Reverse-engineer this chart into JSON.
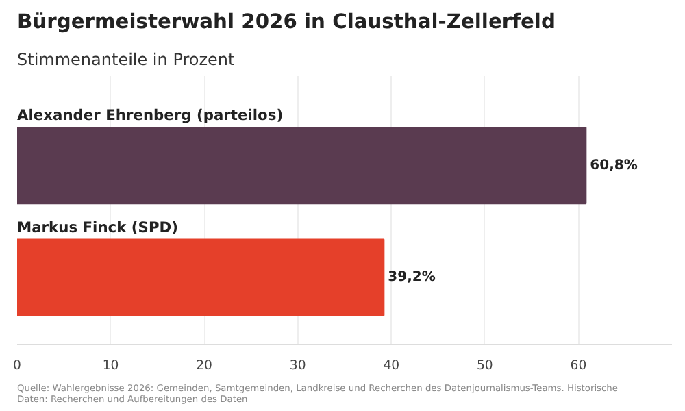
{
  "chart_data": {
    "type": "bar",
    "orientation": "horizontal",
    "title": "Bürgermeisterwahl 2026 in Clausthal-Zellerfeld",
    "subtitle": "Stimmenanteile in Prozent",
    "categories": [
      "Alexander Ehrenberg (parteilos)",
      "Markus Finck (SPD)"
    ],
    "values": [
      60.8,
      39.2
    ],
    "colors": [
      "#5a3b50",
      "#e5402a"
    ],
    "value_labels": [
      "60,8%",
      "39,2%"
    ],
    "xlim": [
      0,
      70
    ],
    "xticks": [
      0,
      10,
      20,
      30,
      40,
      50,
      60
    ],
    "grid": "x",
    "annotations": [
      "Quelle: Wahlergebnisse 2026: Gemeinden, Samtgemeinden, Landkreise und Recherchen des Datenjournalismus-Teams. Historische Daten: Recherchen und Aufbereitungen des Daten"
    ]
  }
}
